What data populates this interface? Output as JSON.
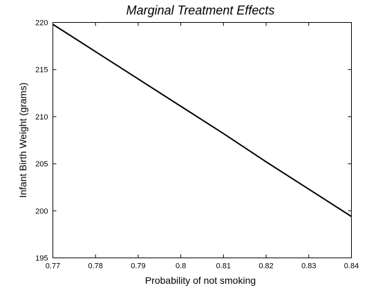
{
  "chart_data": {
    "type": "line",
    "title": "Marginal Treatment Effects",
    "xlabel": "Probability of not smoking",
    "ylabel": "Infant Birth Weight (grams)",
    "xlim": [
      0.77,
      0.84
    ],
    "ylim": [
      195,
      220
    ],
    "xticks": [
      "0.77",
      "0.78",
      "0.79",
      "0.8",
      "0.81",
      "0.82",
      "0.83",
      "0.84"
    ],
    "yticks": [
      "195",
      "200",
      "205",
      "210",
      "215",
      "220"
    ],
    "grid": false,
    "series": [
      {
        "x": [
          0.77,
          0.78,
          0.79,
          0.8,
          0.81,
          0.82,
          0.83,
          0.84
        ],
        "y": [
          219.8,
          216.9,
          214.0,
          211.1,
          208.2,
          205.2,
          202.3,
          199.4
        ],
        "color": "#000000"
      }
    ]
  }
}
